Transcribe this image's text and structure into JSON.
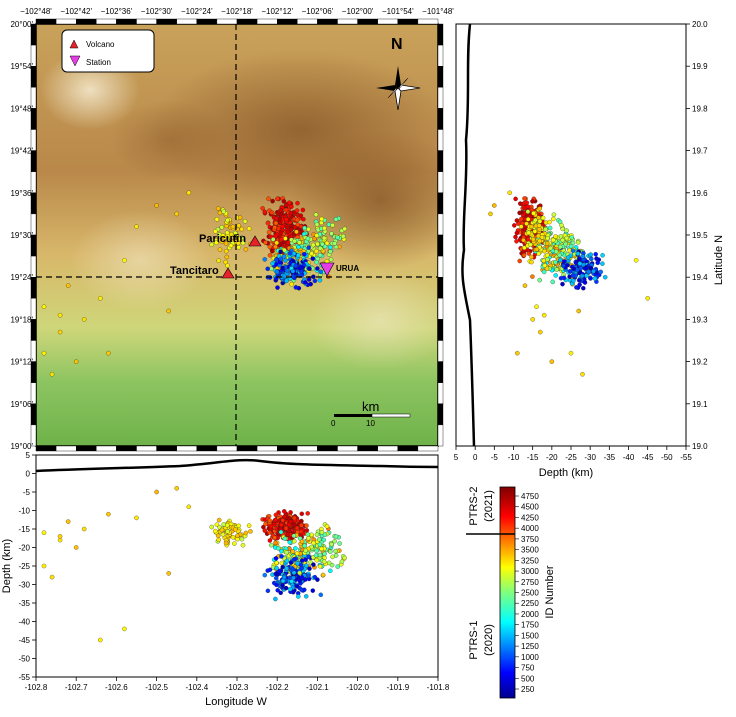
{
  "map": {
    "lon_ticks": [
      "−102°48'",
      "−102°42'",
      "−102°36'",
      "−102°30'",
      "−102°24'",
      "−102°18'",
      "−102°12'",
      "−102°06'",
      "−102°00'",
      "−101°54'",
      "−101°48'"
    ],
    "lat_ticks": [
      "20°00'",
      "19°54'",
      "19°48'",
      "19°42'",
      "19°36'",
      "19°30'",
      "19°24'",
      "19°18'",
      "19°12'",
      "19°06'",
      "19°00'"
    ],
    "legend": {
      "volcano": "Volcano",
      "station": "Station"
    },
    "north": "N",
    "volcanoes": [
      {
        "name": "Paricutin",
        "lon": -102.25,
        "lat": 19.49
      },
      {
        "name": "Tancitaro",
        "lon": -102.31,
        "lat": 19.42
      }
    ],
    "station": {
      "name": "URUA",
      "lon": -102.06,
      "lat": 19.41
    },
    "scale_label": "km",
    "scale_ticks": [
      "0",
      "10"
    ],
    "crosshair": {
      "lon": -102.3,
      "lat": 19.4
    },
    "colors": {
      "volcano": "#e8202a",
      "station": "#e63ee6"
    }
  },
  "lat_panel": {
    "ylabel": "Latitude N",
    "xlabel": "Depth (km)",
    "y_ticks": [
      "20.0",
      "19.9",
      "19.8",
      "19.7",
      "19.6",
      "19.5",
      "19.4",
      "19.3",
      "19.2",
      "19.1",
      "19.0"
    ],
    "x_ticks": [
      "5",
      "0",
      "-5",
      "-10",
      "-15",
      "-20",
      "-25",
      "-30",
      "-35",
      "-40",
      "-45",
      "-50",
      "-55"
    ]
  },
  "lon_panel": {
    "ylabel": "Depth (km)",
    "xlabel": "Longitude W",
    "y_ticks": [
      "5",
      "0",
      "-5",
      "-10",
      "-15",
      "-20",
      "-25",
      "-30",
      "-35",
      "-40",
      "-45",
      "-50",
      "-55"
    ],
    "x_ticks": [
      "-102.8",
      "-102.7",
      "-102.6",
      "-102.5",
      "-102.4",
      "-102.3",
      "-102.2",
      "-102.1",
      "-102.0",
      "-101.9",
      "-101.8"
    ]
  },
  "colorbar": {
    "label": "ID Number",
    "ticks": [
      "4750",
      "4500",
      "4250",
      "4000",
      "3750",
      "3500",
      "3250",
      "3000",
      "2750",
      "2500",
      "2250",
      "2000",
      "1750",
      "1500",
      "1250",
      "1000",
      "750",
      "500",
      "250"
    ],
    "period2": "PTRS-2",
    "period2_year": "(2021)",
    "period1": "PTRS-1",
    "period1_year": "(2020)"
  }
}
